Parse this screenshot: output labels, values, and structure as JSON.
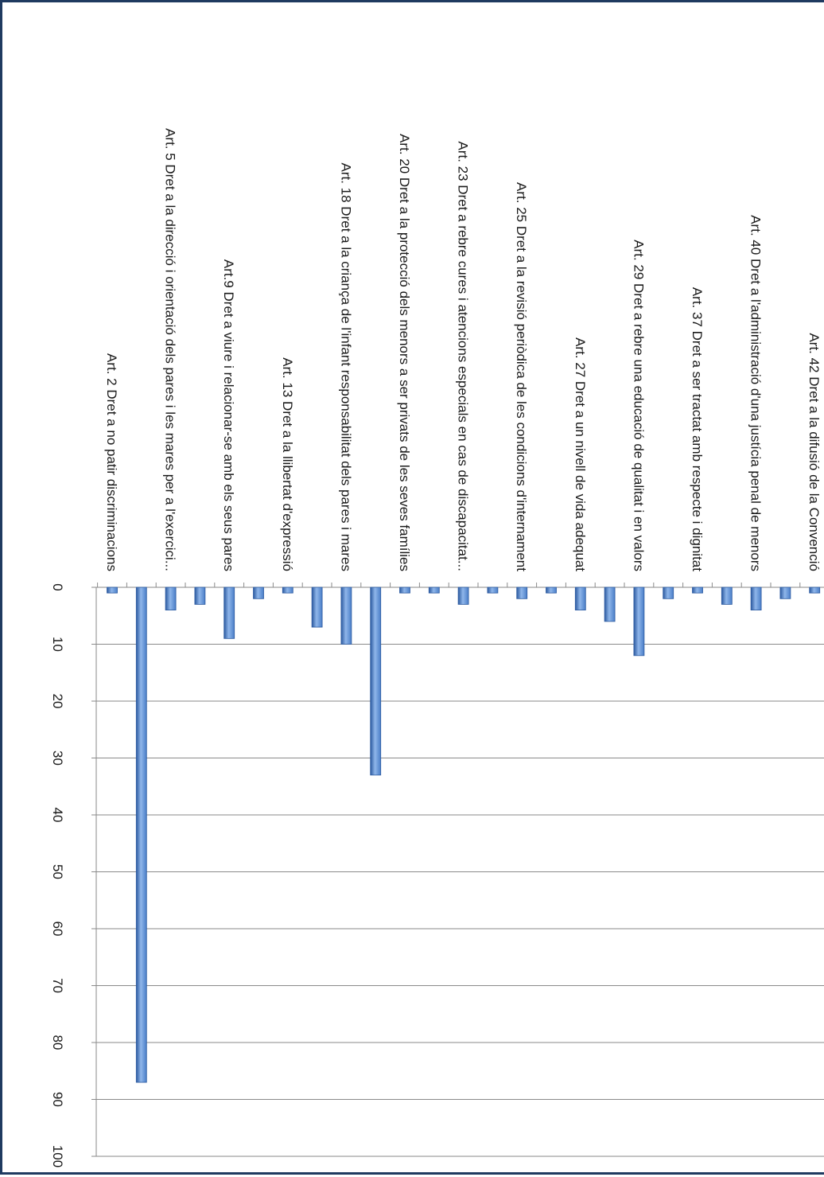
{
  "chart_data": {
    "type": "bar",
    "orientation": "vertical",
    "rotated": "90deg clockwise",
    "title": "",
    "xlabel": "",
    "ylabel": "",
    "ylim": [
      0,
      100
    ],
    "y_ticks": [
      0,
      10,
      20,
      30,
      40,
      50,
      60,
      70,
      80,
      90,
      100
    ],
    "grid": true,
    "legend": "none",
    "bar_color": "#4a7ec8",
    "bar_dark": "#2c5aa0",
    "bar_light": "#8fb6ea",
    "categories": [
      "Art. 2 Dret a no patir discriminacions",
      "",
      "Art. 5 Dret a la direcció i orientació dels pares i les mares per a l'exercici...",
      "",
      "Art.9 Dret a viure i relacionar-se amb els seus pares",
      "",
      "Art. 13 Dret a la llibertat d'expressió",
      "",
      "Art. 18 Dret a la criança de l'infant responsabilitat dels pares i mares",
      "",
      "Art. 20 Dret a la protecció dels menors a ser privats de les seves famílies",
      "",
      "Art. 23 Dret a rebre cures i atencions especials en cas de discapacitat...",
      "",
      "Art. 25 Dret a la revisió periòdica de les condicions d'internament",
      "",
      "Art. 27 Dret a un nivell de vida adequat",
      "",
      "Art. 29 Dret a rebre una educació de qualitat i en valors",
      "",
      "Art. 37 Dret a ser tractat amb respecte i dignitat",
      "",
      "Art. 40 Dret a l'administració d'una justícia penal de menors",
      "",
      "Art. 42 Dret a la difusió de la Convenció"
    ],
    "values": [
      1,
      87,
      4,
      3,
      9,
      2,
      1,
      7,
      10,
      33,
      1,
      1,
      3,
      1,
      2,
      1,
      4,
      6,
      12,
      2,
      1,
      3,
      4,
      2,
      1
    ]
  }
}
